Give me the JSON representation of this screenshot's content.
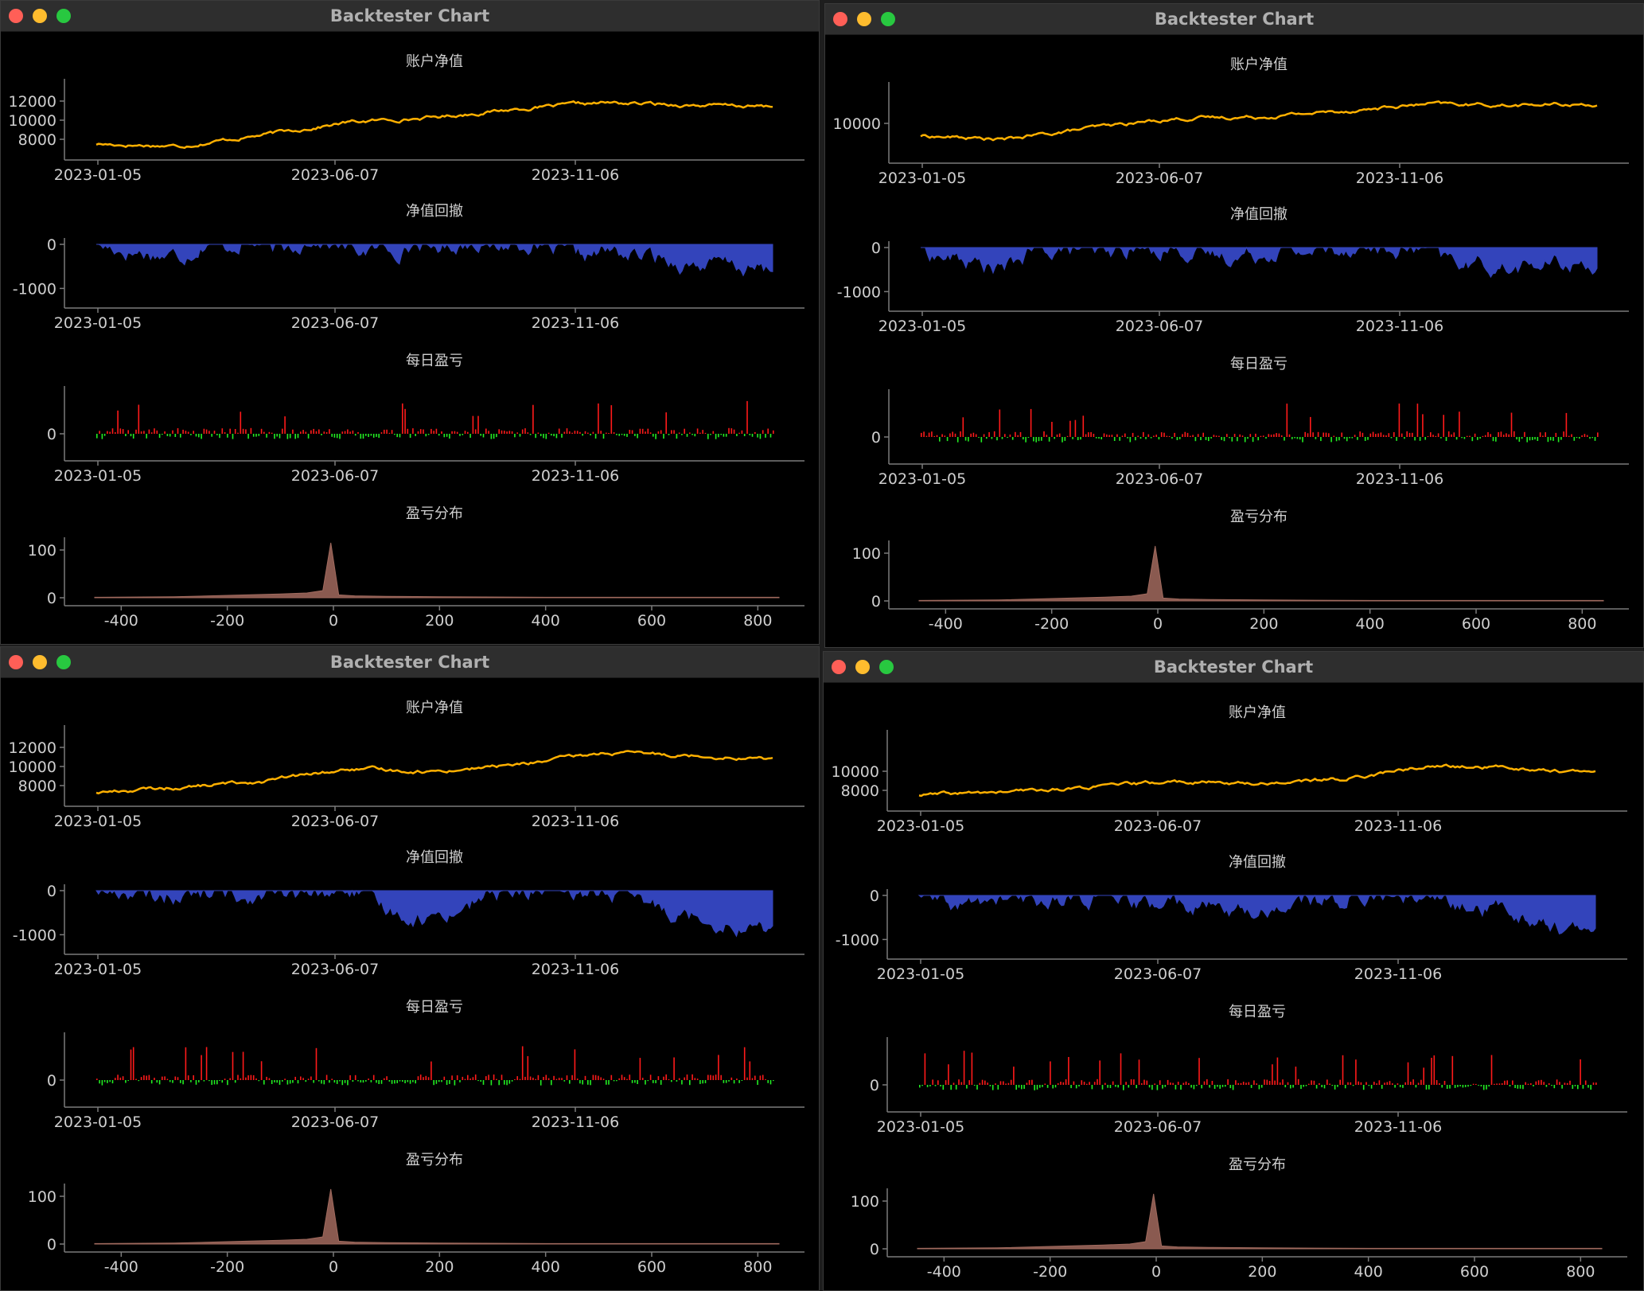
{
  "windows": [
    {
      "title": "Backtester Chart",
      "panels": {
        "equity": {
          "title": "账户净值",
          "yticks": [
            12000,
            10000,
            8000
          ],
          "xticks": [
            "2023-01-05",
            "2023-06-07",
            "2023-11-06"
          ]
        },
        "drawdown": {
          "title": "净值回撤",
          "yticks": [
            0,
            -1000
          ],
          "xticks": [
            "2023-01-05",
            "2023-06-07",
            "2023-11-06"
          ]
        },
        "daily": {
          "title": "每日盈亏",
          "yticks": [
            0
          ],
          "xticks": [
            "2023-01-05",
            "2023-06-07",
            "2023-11-06"
          ]
        },
        "dist": {
          "title": "盈亏分布",
          "yticks": [
            100,
            0
          ],
          "xticks": [
            -400,
            -200,
            0,
            200,
            400,
            600,
            800
          ]
        }
      }
    },
    {
      "title": "Backtester Chart",
      "panels": {
        "equity": {
          "title": "账户净值",
          "yticks": [
            10000
          ],
          "xticks": [
            "2023-01-05",
            "2023-06-07",
            "2023-11-06"
          ]
        },
        "drawdown": {
          "title": "净值回撤",
          "yticks": [
            0,
            -1000
          ],
          "xticks": [
            "2023-01-05",
            "2023-06-07",
            "2023-11-06"
          ]
        },
        "daily": {
          "title": "每日盈亏",
          "yticks": [
            0
          ],
          "xticks": [
            "2023-01-05",
            "2023-06-07",
            "2023-11-06"
          ]
        },
        "dist": {
          "title": "盈亏分布",
          "yticks": [
            100,
            0
          ],
          "xticks": [
            -400,
            -200,
            0,
            200,
            400,
            600,
            800
          ]
        }
      }
    },
    {
      "title": "Backtester Chart",
      "panels": {
        "equity": {
          "title": "账户净值",
          "yticks": [
            12000,
            10000,
            8000
          ],
          "xticks": [
            "2023-01-05",
            "2023-06-07",
            "2023-11-06"
          ]
        },
        "drawdown": {
          "title": "净值回撤",
          "yticks": [
            0,
            -1000
          ],
          "xticks": [
            "2023-01-05",
            "2023-06-07",
            "2023-11-06"
          ]
        },
        "daily": {
          "title": "每日盈亏",
          "yticks": [
            0
          ],
          "xticks": [
            "2023-01-05",
            "2023-06-07",
            "2023-11-06"
          ]
        },
        "dist": {
          "title": "盈亏分布",
          "yticks": [
            100,
            0
          ],
          "xticks": [
            -400,
            -200,
            0,
            200,
            400,
            600,
            800
          ]
        }
      }
    },
    {
      "title": "Backtester Chart",
      "panels": {
        "equity": {
          "title": "账户净值",
          "yticks": [
            10000,
            8000
          ],
          "xticks": [
            "2023-01-05",
            "2023-06-07",
            "2023-11-06"
          ]
        },
        "drawdown": {
          "title": "净值回撤",
          "yticks": [
            0,
            -1000
          ],
          "xticks": [
            "2023-01-05",
            "2023-06-07",
            "2023-11-06"
          ]
        },
        "daily": {
          "title": "每日盈亏",
          "yticks": [
            0
          ],
          "xticks": [
            "2023-01-05",
            "2023-06-07",
            "2023-11-06"
          ]
        },
        "dist": {
          "title": "盈亏分布",
          "yticks": [
            100,
            0
          ],
          "xticks": [
            -400,
            -200,
            0,
            200,
            400,
            600,
            800
          ]
        }
      }
    }
  ],
  "colors": {
    "equity_line": "#ffb000",
    "drawdown_fill": "#3344bb",
    "profit_bar": "#ff1a1a",
    "loss_bar": "#22ee22",
    "dist_fill": "#8a5a50",
    "axis": "#7a7a7a",
    "background": "#000000"
  },
  "chart_data": [
    {
      "type": "line",
      "title": "账户净值",
      "x": [
        "2023-01-05",
        "2023-03-01",
        "2023-04-15",
        "2023-06-07",
        "2023-08-01",
        "2023-09-20",
        "2023-11-06",
        "2023-12-20",
        "2024-01-31"
      ],
      "series": [
        {
          "values": [
            7500,
            7300,
            8500,
            9800,
            10300,
            11200,
            11800,
            11600,
            11400
          ]
        },
        {
          "values": [
            8700,
            8300,
            9500,
            10500,
            10700,
            11300,
            12000,
            11900,
            12000
          ]
        },
        {
          "values": [
            7300,
            7800,
            8500,
            9700,
            9500,
            10200,
            11400,
            11200,
            10800
          ]
        },
        {
          "values": [
            7500,
            7800,
            8300,
            8900,
            8700,
            9200,
            10500,
            10400,
            9800
          ]
        }
      ]
    },
    {
      "type": "area",
      "title": "净值回撤",
      "x": [
        "2023-01-05",
        "2023-06-07",
        "2023-11-06"
      ],
      "ylim": [
        -1300,
        0
      ]
    },
    {
      "type": "bar",
      "title": "每日盈亏",
      "x": [
        "2023-01-05",
        "2023-06-07",
        "2023-11-06"
      ]
    },
    {
      "type": "area",
      "title": "盈亏分布",
      "x": [
        -450,
        -300,
        -200,
        -100,
        -50,
        -20,
        -5,
        10,
        40,
        100,
        200,
        400,
        600,
        840
      ],
      "values": [
        1,
        2,
        5,
        8,
        10,
        15,
        115,
        6,
        4,
        3,
        2,
        1,
        1,
        1
      ],
      "ylim": [
        0,
        120
      ]
    }
  ]
}
